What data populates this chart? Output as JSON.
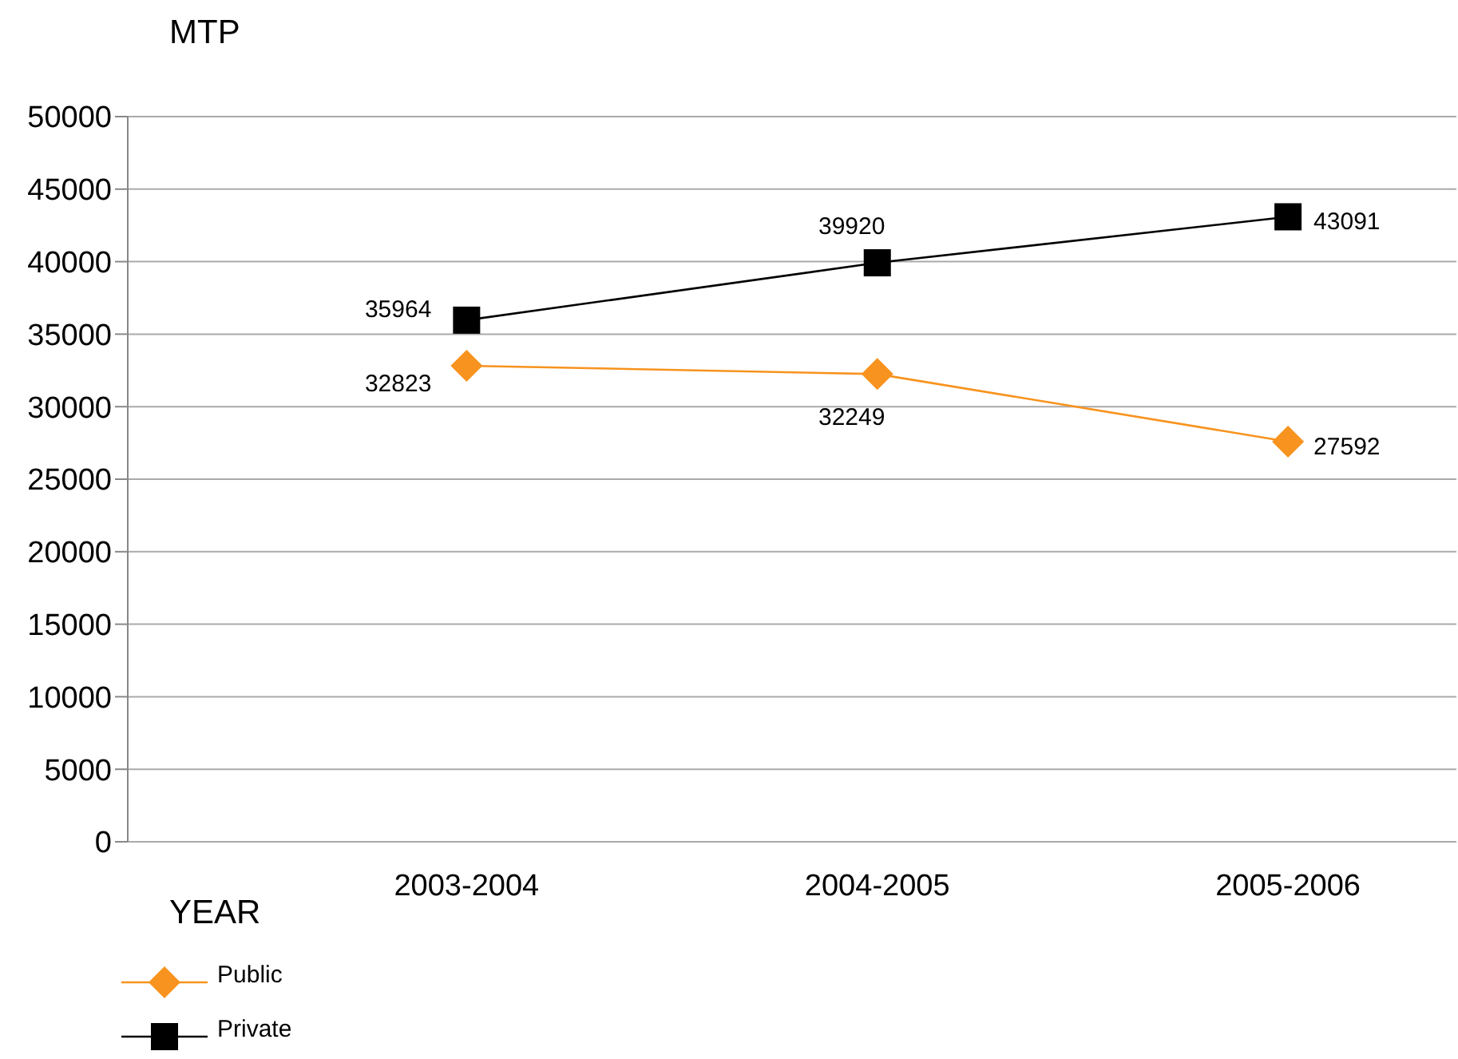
{
  "chart_data": {
    "type": "line",
    "xlabel": "YEAR",
    "ylabel": "MTP",
    "categories": [
      "2003-2004",
      "2004-2005",
      "2005-2006"
    ],
    "series": [
      {
        "name": "Public",
        "color": "#f7931e",
        "marker": "diamond",
        "values": [
          32823,
          32249,
          27592
        ]
      },
      {
        "name": "Private",
        "color": "#000000",
        "marker": "square",
        "values": [
          35964,
          39920,
          43091
        ]
      }
    ],
    "ylim": [
      0,
      50000
    ],
    "yticks": [
      0,
      5000,
      10000,
      15000,
      20000,
      25000,
      30000,
      35000,
      40000,
      45000,
      50000
    ],
    "grid": "y",
    "data_labels": true,
    "legend": "bottom left"
  }
}
